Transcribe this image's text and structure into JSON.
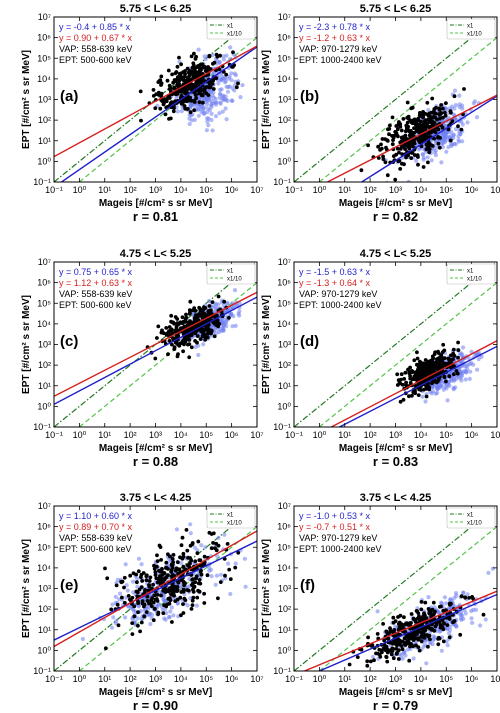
{
  "figure": {
    "xlabel": "Mageis [#/cm² s sr MeV]",
    "ylabel": "EPT [#/cm² s sr MeV]",
    "x_tick_labels": [
      "10⁻¹",
      "10⁰",
      "10¹",
      "10²",
      "10³",
      "10⁴",
      "10⁵",
      "10⁶",
      "10⁷"
    ],
    "y_tick_labels": [
      "10⁻¹",
      "10⁰",
      "10¹",
      "10²",
      "10³",
      "10⁴",
      "10⁵",
      "10⁶",
      "10⁷"
    ],
    "legend": [
      "x1",
      "x1/10"
    ],
    "colors": {
      "blue": "#1f1fcc",
      "red": "#d62020",
      "dark_green": "#1f7a1f",
      "light_green": "#55c24a",
      "black_points": "#000000",
      "blue_points": "#6f7ff0"
    }
  },
  "chart_data": [
    {
      "type": "scatter",
      "panel_label": "(a)",
      "title": "5.75 < L< 6.25",
      "xlim": [
        0.1,
        10000000
      ],
      "ylim": [
        0.1,
        10000000
      ],
      "xscale": "log",
      "yscale": "log",
      "grid": false,
      "legend": "top-right",
      "blue_eq": "y = -0.4 + 0.85 * x",
      "red_eq": "y = 0.90 + 0.67 * x",
      "vap": "VAP: 558-639 keV",
      "ept": "EPT: 500-600 keV",
      "blue_fit": {
        "intercept": -0.4,
        "slope": 0.85
      },
      "red_fit": {
        "intercept": 0.9,
        "slope": 0.67
      },
      "r_label": "r = 0.81",
      "clusters": {
        "black": {
          "cx": 4.3,
          "cy": 3.7,
          "sx": 0.65,
          "sy": 0.55
        },
        "blue": {
          "cx": 5.0,
          "cy": 3.5,
          "sx": 0.55,
          "sy": 0.7
        }
      }
    },
    {
      "type": "scatter",
      "panel_label": "(b)",
      "title": "5.75 < L< 6.25",
      "xlim": [
        0.1,
        10000000
      ],
      "ylim": [
        0.1,
        10000000
      ],
      "xscale": "log",
      "yscale": "log",
      "grid": false,
      "legend": "top-right",
      "blue_eq": "y = -2.3 + 0.78 * x",
      "red_eq": "y = -1.2 + 0.63 * x",
      "vap": "VAP: 970-1279 keV",
      "ept": "EPT: 1000-2400 keV",
      "blue_fit": {
        "intercept": -2.3,
        "slope": 0.78
      },
      "red_fit": {
        "intercept": -1.2,
        "slope": 0.63
      },
      "r_label": "r = 0.82",
      "clusters": {
        "black": {
          "cx": 3.8,
          "cy": 1.3,
          "sx": 0.7,
          "sy": 0.55
        },
        "blue": {
          "cx": 4.6,
          "cy": 1.4,
          "sx": 0.6,
          "sy": 0.6
        }
      }
    },
    {
      "type": "scatter",
      "panel_label": "(c)",
      "title": "4.75 < L< 5.25",
      "xlim": [
        0.1,
        10000000
      ],
      "ylim": [
        0.1,
        10000000
      ],
      "xscale": "log",
      "yscale": "log",
      "grid": false,
      "legend": "top-right",
      "blue_eq": "y = 0.75 + 0.65 * x",
      "red_eq": "y = 1.12 + 0.63 * x",
      "vap": "VAP: 558-639 keV",
      "ept": "EPT: 500-600 keV",
      "blue_fit": {
        "intercept": 0.75,
        "slope": 0.65
      },
      "red_fit": {
        "intercept": 1.12,
        "slope": 0.63
      },
      "r_label": "r = 0.88",
      "clusters": {
        "black": {
          "cx": 4.4,
          "cy": 3.8,
          "sx": 0.6,
          "sy": 0.4
        },
        "blue": {
          "cx": 5.2,
          "cy": 4.1,
          "sx": 0.5,
          "sy": 0.4
        }
      }
    },
    {
      "type": "scatter",
      "panel_label": "(d)",
      "title": "4.75 < L< 5.25",
      "xlim": [
        0.1,
        10000000
      ],
      "ylim": [
        0.1,
        10000000
      ],
      "xscale": "log",
      "yscale": "log",
      "grid": false,
      "legend": "top-right",
      "blue_eq": "y = -1.5 + 0.63 * x",
      "red_eq": "y = -1.3 + 0.64 * x",
      "vap": "VAP: 970-1279 keV",
      "ept": "EPT: 1000-2400 keV",
      "blue_fit": {
        "intercept": -1.5,
        "slope": 0.63
      },
      "red_fit": {
        "intercept": -1.3,
        "slope": 0.64
      },
      "r_label": "r = 0.83",
      "clusters": {
        "black": {
          "cx": 4.3,
          "cy": 1.6,
          "sx": 0.5,
          "sy": 0.4
        },
        "blue": {
          "cx": 5.0,
          "cy": 1.6,
          "sx": 0.5,
          "sy": 0.4
        }
      }
    },
    {
      "type": "scatter",
      "panel_label": "(e)",
      "title": "3.75 < L< 4.25",
      "xlim": [
        0.1,
        10000000
      ],
      "ylim": [
        0.1,
        10000000
      ],
      "xscale": "log",
      "yscale": "log",
      "grid": false,
      "legend": "top-right",
      "blue_eq": "y = 1.10 + 0.60 * x",
      "red_eq": "y = 0.89 + 0.70 * x",
      "vap": "VAP: 558-639 keV",
      "ept": "EPT: 500-600 keV",
      "blue_fit": {
        "intercept": 1.1,
        "slope": 0.6
      },
      "red_fit": {
        "intercept": 0.89,
        "slope": 0.7
      },
      "r_label": "r = 0.90",
      "clusters": {
        "black": {
          "cx": 3.5,
          "cy": 3.3,
          "sx": 1.0,
          "sy": 0.8
        },
        "blue": {
          "cx": 3.3,
          "cy": 3.0,
          "sx": 1.1,
          "sy": 0.8
        }
      }
    },
    {
      "type": "scatter",
      "panel_label": "(f)",
      "title": "3.75 < L< 4.25",
      "xlim": [
        0.1,
        10000000
      ],
      "ylim": [
        0.1,
        10000000
      ],
      "xscale": "log",
      "yscale": "log",
      "grid": false,
      "legend": "top-right",
      "blue_eq": "y = -1.0 + 0.53 * x",
      "red_eq": "y = -0.7 + 0.51 * x",
      "vap": "VAP: 970-1279 keV",
      "ept": "EPT: 1000-2400 keV",
      "blue_fit": {
        "intercept": -1.0,
        "slope": 0.53
      },
      "red_fit": {
        "intercept": -0.7,
        "slope": 0.51
      },
      "r_label": "r = 0.79",
      "clusters": {
        "black": {
          "cx": 3.6,
          "cy": 0.9,
          "sx": 0.9,
          "sy": 0.5
        },
        "blue": {
          "cx": 4.3,
          "cy": 1.2,
          "sx": 0.9,
          "sy": 0.5
        }
      }
    }
  ]
}
